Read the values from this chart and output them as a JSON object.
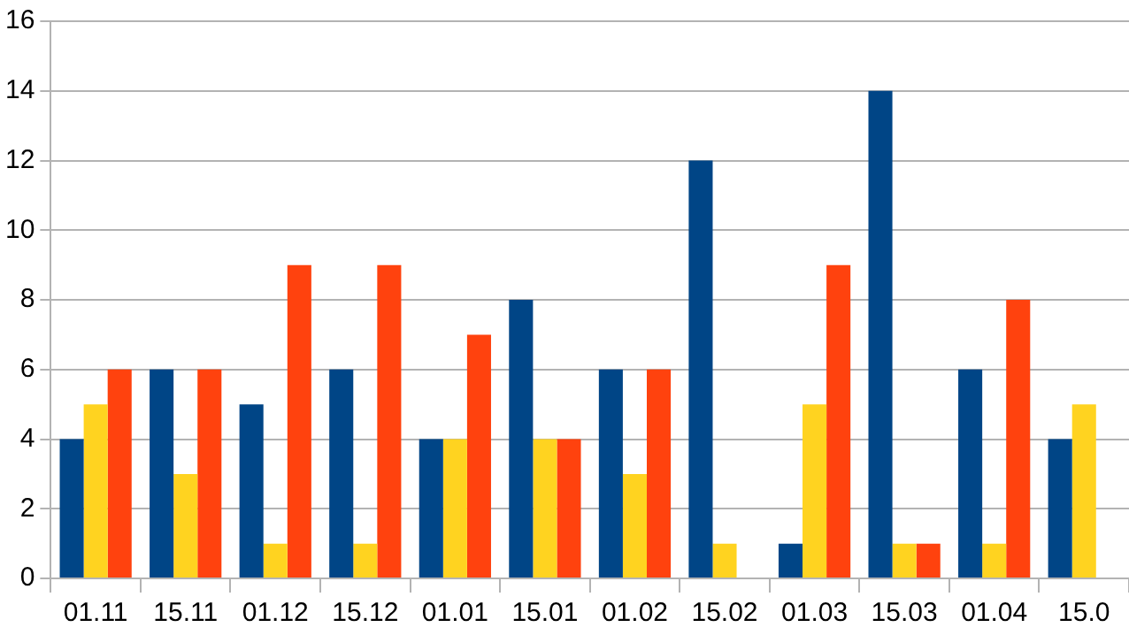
{
  "chart_data": {
    "type": "bar",
    "categories": [
      "01.11",
      "15.11",
      "01.12",
      "15.12",
      "01.01",
      "15.01",
      "01.02",
      "15.02",
      "01.03",
      "15.03",
      "01.04",
      "15.0"
    ],
    "series": [
      {
        "color": "#004586",
        "values": [
          4,
          6,
          5,
          6,
          4,
          8,
          6,
          12,
          1,
          14,
          6,
          4
        ]
      },
      {
        "color": "#ffd320",
        "values": [
          5,
          3,
          1,
          1,
          4,
          4,
          3,
          1,
          5,
          1,
          1,
          5
        ]
      },
      {
        "color": "#ff420e",
        "values": [
          6,
          6,
          9,
          9,
          7,
          4,
          6,
          null,
          9,
          1,
          8,
          null
        ]
      }
    ],
    "ylim": [
      0,
      16
    ],
    "yticks": [
      0,
      2,
      4,
      6,
      8,
      10,
      12,
      14,
      16
    ],
    "grid": "y",
    "legend": false
  }
}
